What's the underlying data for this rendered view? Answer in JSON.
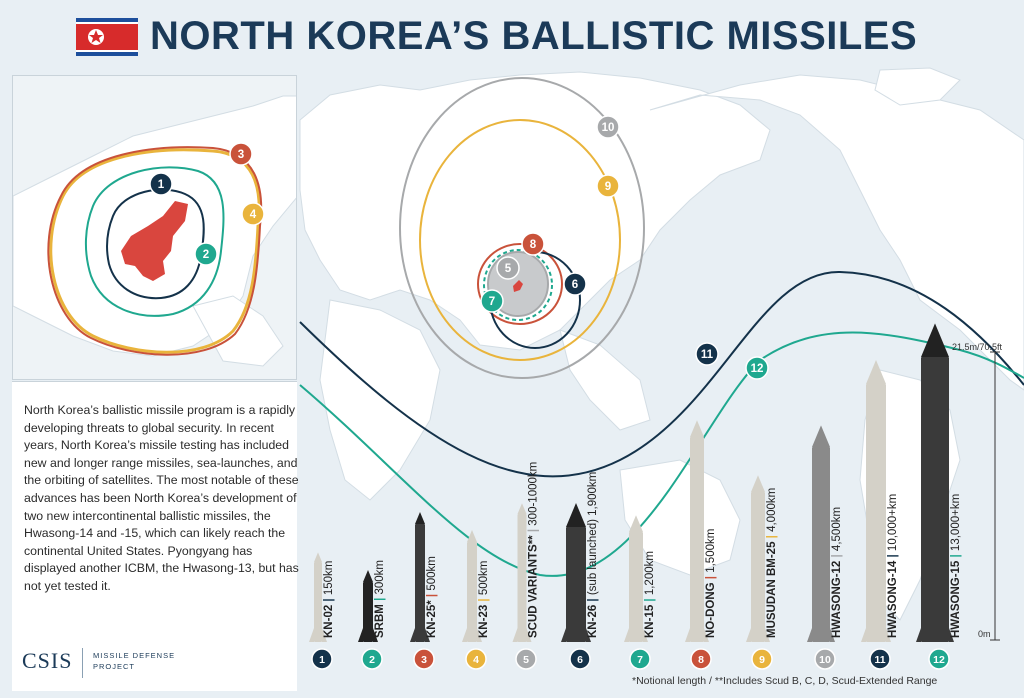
{
  "title": "NORTH KOREA’S BALLISTIC MISSILES",
  "intro_text": "North Korea’s ballistic missile program is a rapidly developing threats to global security. In recent years, North Korea’s missile testing has included new and longer range missiles, sea-launches, and the orbiting of satellites. The most notable of these advances has been North Korea’s development of two new intercontinental ballistic missiles, the Hwasong-14 and -15, which can likely reach the continental United States. Pyongyang has displayed another ICBM, the Hwasong-13, but has not yet tested it.",
  "logo": {
    "name": "CSIS",
    "subtitle": "MISSILE DEFENSE\nPROJECT"
  },
  "footnote": "*Notional length / **Includes Scud B, C, D, Scud-Extended Range",
  "scale": {
    "top_label": "21.5m/70.5ft",
    "bottom_label": "0m"
  },
  "colors": {
    "navy": "#14324a",
    "teal": "#1fa88f",
    "red": "#c9523a",
    "yellow": "#e9b43c",
    "gray": "#a7a9ab",
    "title": "#1b3a58"
  },
  "missiles": [
    {
      "num": "1",
      "name": "KN-02",
      "range": "150km",
      "color": "#14324a",
      "body": "light"
    },
    {
      "num": "2",
      "name": "SRBM",
      "range": "300km",
      "color": "#1fa88f",
      "body": "stripe"
    },
    {
      "num": "3",
      "name": "KN-25*",
      "range": "500km",
      "color": "#c9523a",
      "body": "dark"
    },
    {
      "num": "4",
      "name": "KN-23",
      "range": "500km",
      "color": "#e9b43c",
      "body": "light"
    },
    {
      "num": "5",
      "name": "SCUD VARIANTS**",
      "range": "300-1000km",
      "color": "#a7a9ab",
      "body": "light"
    },
    {
      "num": "6",
      "name": "KN-26",
      "range": "(sub launched) 1,900km",
      "color": "#14324a",
      "body": "dark"
    },
    {
      "num": "7",
      "name": "KN-15",
      "range": "1,200km",
      "color": "#1fa88f",
      "body": "light"
    },
    {
      "num": "8",
      "name": "NO-DONG",
      "range": "1,500km",
      "color": "#c9523a",
      "body": "light"
    },
    {
      "num": "9",
      "name": "MUSUDAN BM-25",
      "range": "4,000km",
      "color": "#e9b43c",
      "body": "light"
    },
    {
      "num": "10",
      "name": "HWASONG-12",
      "range": "4,500km",
      "color": "#a7a9ab",
      "body": "gray"
    },
    {
      "num": "11",
      "name": "HWASONG-14",
      "range": "10,000+km",
      "color": "#14324a",
      "body": "light"
    },
    {
      "num": "12",
      "name": "HWASONG-15",
      "range": "13,000+km",
      "color": "#1fa88f",
      "body": "dark"
    }
  ],
  "inset_markers": [
    {
      "num": "1",
      "color": "#14324a"
    },
    {
      "num": "2",
      "color": "#1fa88f"
    },
    {
      "num": "3",
      "color": "#c9523a"
    },
    {
      "num": "4",
      "color": "#e9b43c"
    }
  ],
  "map_markers": [
    {
      "num": "5",
      "color": "#a7a9ab"
    },
    {
      "num": "6",
      "color": "#14324a"
    },
    {
      "num": "7",
      "color": "#1fa88f"
    },
    {
      "num": "8",
      "color": "#c9523a"
    },
    {
      "num": "9",
      "color": "#e9b43c"
    },
    {
      "num": "10",
      "color": "#a7a9ab"
    },
    {
      "num": "11",
      "color": "#14324a"
    },
    {
      "num": "12",
      "color": "#1fa88f"
    }
  ]
}
